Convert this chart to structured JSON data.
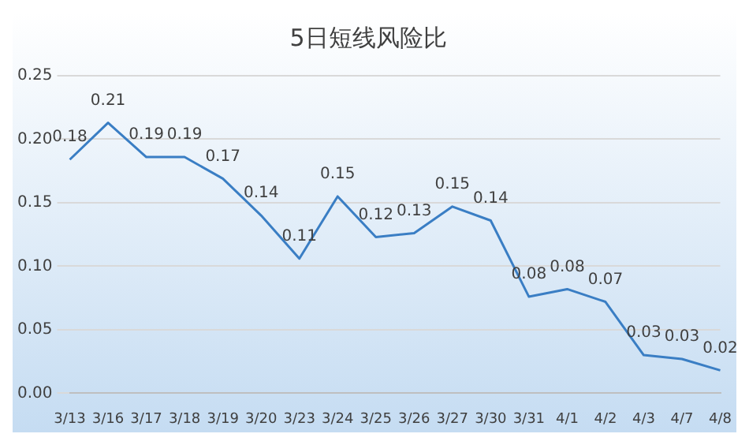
{
  "chart_data": {
    "type": "line",
    "title": "5日短线风险比",
    "categories": [
      "3/13",
      "3/16",
      "3/17",
      "3/18",
      "3/19",
      "3/20",
      "3/23",
      "3/24",
      "3/25",
      "3/26",
      "3/27",
      "3/30",
      "3/31",
      "4/1",
      "4/2",
      "4/3",
      "4/7",
      "4/8"
    ],
    "series": [
      {
        "color": "#3a7ec4",
        "values": [
          0.184,
          0.213,
          0.186,
          0.186,
          0.169,
          0.14,
          0.106,
          0.155,
          0.123,
          0.126,
          0.147,
          0.136,
          0.076,
          0.082,
          0.072,
          0.03,
          0.027,
          0.018
        ],
        "value_labels": [
          "0.18",
          "0.21",
          "0.19",
          "0.19",
          "0.17",
          "0.14",
          "0.11",
          "0.15",
          "0.12",
          "0.13",
          "0.15",
          "0.14",
          "0.08",
          "0.08",
          "0.07",
          "0.03",
          "0.03",
          "0.02"
        ]
      }
    ],
    "ylim": [
      0,
      0.25
    ],
    "yticks": [
      {
        "value": 0,
        "label": "0.00"
      },
      {
        "value": 0.05,
        "label": "0.05"
      },
      {
        "value": 0.1,
        "label": "0.10"
      },
      {
        "value": 0.15,
        "label": "0.15"
      },
      {
        "value": 0.2,
        "label": "0.20"
      },
      {
        "value": 0.25,
        "label": "0.25"
      }
    ],
    "grid": "y",
    "legend": false,
    "marker": "none",
    "line_style": "solid"
  }
}
